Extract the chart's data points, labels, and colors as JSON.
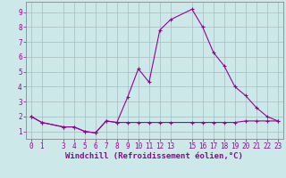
{
  "xlabel": "Windchill (Refroidissement éolien,°C)",
  "x_values": [
    0,
    1,
    3,
    4,
    5,
    6,
    7,
    8,
    9,
    10,
    11,
    12,
    13,
    15,
    16,
    17,
    18,
    19,
    20,
    21,
    22,
    23
  ],
  "y_main": [
    2.0,
    1.6,
    1.3,
    1.3,
    1.0,
    0.9,
    1.7,
    1.6,
    3.3,
    5.2,
    4.3,
    7.8,
    8.5,
    9.2,
    8.0,
    6.3,
    5.4,
    4.0,
    3.4,
    2.6,
    2.0,
    1.7
  ],
  "y_flat": [
    2.0,
    1.6,
    1.3,
    1.3,
    1.0,
    0.9,
    1.7,
    1.6,
    1.6,
    1.6,
    1.6,
    1.6,
    1.6,
    1.6,
    1.6,
    1.6,
    1.6,
    1.6,
    1.7,
    1.7,
    1.7,
    1.7
  ],
  "line_color": "#990099",
  "background_color": "#cce8e8",
  "grid_color": "#aabbbb",
  "ylim": [
    0.5,
    9.7
  ],
  "xlim": [
    -0.5,
    23.5
  ],
  "yticks": [
    1,
    2,
    3,
    4,
    5,
    6,
    7,
    8,
    9
  ],
  "xticks": [
    0,
    1,
    3,
    4,
    5,
    6,
    7,
    8,
    9,
    10,
    11,
    12,
    13,
    15,
    16,
    17,
    18,
    19,
    20,
    21,
    22,
    23
  ],
  "tick_color": "#990099",
  "xlabel_fontsize": 6.5,
  "tick_fontsize": 5.5
}
